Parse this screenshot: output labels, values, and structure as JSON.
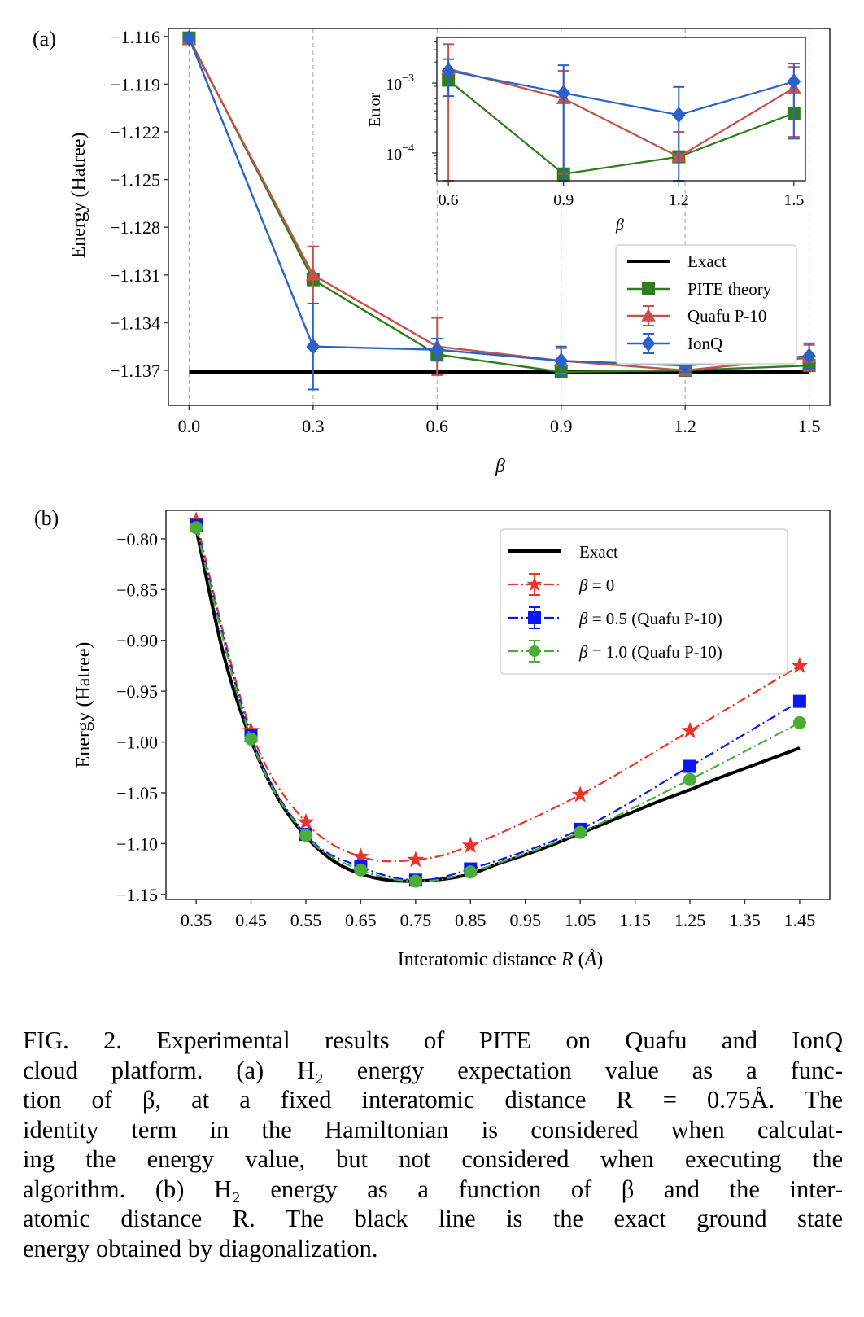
{
  "figure": {
    "panel_a_label": "(a)",
    "panel_b_label": "(b)"
  },
  "chart_data": [
    {
      "id": "a-main",
      "type": "line",
      "title": "",
      "xlabel": "β",
      "ylabel": "Energy (Hatree)",
      "x": [
        0.0,
        0.3,
        0.6,
        0.9,
        1.2,
        1.5
      ],
      "xticks": [
        "0.0",
        "0.3",
        "0.6",
        "0.9",
        "1.2",
        "1.5"
      ],
      "yticks": [
        -1.116,
        -1.119,
        -1.122,
        -1.125,
        -1.128,
        -1.131,
        -1.134,
        -1.137
      ],
      "ytick_labels": [
        "−1.116",
        "−1.119",
        "−1.122",
        "−1.125",
        "−1.128",
        "−1.131",
        "−1.134",
        "−1.137"
      ],
      "xlim": [
        -0.05,
        1.55
      ],
      "ylim": [
        -1.1392,
        -1.1155
      ],
      "grid": "vertical dashed at x ticks",
      "legend_position": "center-right",
      "series": [
        {
          "name": "Exact",
          "color": "#000000",
          "marker": "none",
          "values": [
            -1.1371,
            -1.1371,
            -1.1371,
            -1.1371,
            -1.1371,
            -1.1371
          ]
        },
        {
          "name": "PITE theory",
          "color": "#2e7d1f",
          "marker": "square",
          "values": [
            -1.1161,
            -1.1313,
            -1.136,
            -1.1371,
            -1.137,
            -1.1367
          ]
        },
        {
          "name": "Quafu P-10",
          "color": "#c8504b",
          "marker": "triangle",
          "values": [
            -1.1162,
            -1.131,
            -1.1355,
            -1.1364,
            -1.137,
            -1.1362
          ],
          "errors": [
            0.0,
            0.0018,
            0.0018,
            0.0008,
            0.0002,
            0.0008
          ]
        },
        {
          "name": "IonQ",
          "color": "#2a62c9",
          "marker": "diamond",
          "values": [
            -1.1161,
            -1.1355,
            -1.1357,
            -1.1364,
            -1.1367,
            -1.1361
          ],
          "errors": [
            0.0,
            0.0027,
            0.0007,
            0.0009,
            0.0004,
            0.0008
          ]
        }
      ]
    },
    {
      "id": "a-inset",
      "type": "line",
      "title": "",
      "xlabel": "β",
      "ylabel": "Error",
      "yscale": "log",
      "x": [
        0.6,
        0.9,
        1.2,
        1.5
      ],
      "xticks": [
        "0.6",
        "0.9",
        "1.2",
        "1.5"
      ],
      "ytick_labels": [
        "10",
        "10"
      ],
      "ytick_exponents": [
        "−3",
        "−4"
      ],
      "yticks": [
        0.001,
        0.0001
      ],
      "xlim": [
        0.57,
        1.53
      ],
      "ylim": [
        4e-05,
        0.0045
      ],
      "series": [
        {
          "name": "PITE theory",
          "color": "#2e7d1f",
          "marker": "square",
          "values": [
            0.0011,
            5e-05,
            8.8e-05,
            0.00037
          ]
        },
        {
          "name": "Quafu P-10",
          "color": "#c8504b",
          "marker": "triangle",
          "values": [
            0.0016,
            0.0006,
            8.8e-05,
            0.00085
          ],
          "err_low": [
            1e-05,
            5e-05,
            8.8e-05,
            0.00017
          ],
          "err_high": [
            0.0036,
            0.0015,
            0.0002,
            0.0017
          ]
        },
        {
          "name": "IonQ",
          "color": "#2a62c9",
          "marker": "diamond",
          "values": [
            0.0015,
            0.00072,
            0.00035,
            0.00105
          ],
          "err_low": [
            0.00065,
            3e-05,
            3e-05,
            0.00016
          ],
          "err_high": [
            0.0022,
            0.0018,
            0.00088,
            0.0019
          ]
        }
      ]
    },
    {
      "id": "b",
      "type": "line",
      "title": "",
      "xlabel": "Interatomic distance R (Å)",
      "xlabel_parts": [
        "Interatomic distance ",
        "R",
        " (",
        "Å",
        ")"
      ],
      "ylabel": "Energy (Hatree)",
      "xticks": [
        "0.35",
        "0.45",
        "0.55",
        "0.65",
        "0.75",
        "0.85",
        "0.95",
        "1.05",
        "1.15",
        "1.25",
        "1.35",
        "1.45"
      ],
      "yticks": [
        -0.8,
        -0.85,
        -0.9,
        -0.95,
        -1.0,
        -1.05,
        -1.1,
        -1.15
      ],
      "ytick_labels": [
        "−0.80",
        "−0.85",
        "−0.90",
        "−0.95",
        "−1.00",
        "−1.05",
        "−1.10",
        "−1.15"
      ],
      "xlim": [
        0.295,
        1.505
      ],
      "ylim": [
        -1.155,
        -0.772
      ],
      "legend_position": "top-right",
      "exact_curve": {
        "name": "Exact",
        "color": "#000000",
        "x": [
          0.35,
          0.4,
          0.45,
          0.5,
          0.55,
          0.6,
          0.65,
          0.7,
          0.75,
          0.8,
          0.85,
          0.9,
          0.95,
          1.0,
          1.05,
          1.1,
          1.15,
          1.2,
          1.25,
          1.3,
          1.35,
          1.4,
          1.45
        ],
        "y": [
          -0.79,
          -0.914,
          -0.998,
          -1.056,
          -1.093,
          -1.117,
          -1.13,
          -1.136,
          -1.137,
          -1.135,
          -1.13,
          -1.12,
          -1.111,
          -1.101,
          -1.09,
          -1.079,
          -1.068,
          -1.057,
          -1.047,
          -1.036,
          -1.026,
          -1.016,
          -1.006
        ]
      },
      "x": [
        0.35,
        0.45,
        0.55,
        0.65,
        0.75,
        0.85,
        1.05,
        1.25,
        1.45
      ],
      "series": [
        {
          "name": "β = 0",
          "label_parts": [
            "β",
            " = 0"
          ],
          "color": "#e8352a",
          "marker": "star",
          "values": [
            -0.782,
            -0.989,
            -1.079,
            -1.113,
            -1.116,
            -1.102,
            -1.052,
            -0.989,
            -0.925
          ]
        },
        {
          "name": "β = 0.5 (Quafu P-10)",
          "label_parts": [
            "β",
            " = 0.5 (Quafu P-10)"
          ],
          "color": "#0a17f0",
          "marker": "square",
          "values": [
            -0.787,
            -0.994,
            -1.091,
            -1.123,
            -1.136,
            -1.125,
            -1.086,
            -1.024,
            -0.96
          ]
        },
        {
          "name": "β = 1.0 (Quafu P-10)",
          "label_parts": [
            "β",
            " = 1.0 (Quafu P-10)"
          ],
          "color": "#4aad35",
          "marker": "circle",
          "values": [
            -0.789,
            -0.997,
            -1.092,
            -1.126,
            -1.137,
            -1.128,
            -1.089,
            -1.037,
            -0.981
          ]
        }
      ]
    }
  ],
  "caption": {
    "lines": [
      "FIG. 2.  Experimental results of PITE on Quafu and IonQ",
      "cloud platform.  (a) H₂ energy expectation value as a func-",
      "tion of β, at a fixed interatomic distance R = 0.75Å. The",
      "identity term in the Hamiltonian is considered when calculat-",
      "ing the energy value, but not considered when executing the",
      "algorithm.  (b) H₂ energy as a function of β and the inter-",
      "atomic distance R. The black line is the exact ground state",
      "energy obtained by diagonalization."
    ]
  }
}
